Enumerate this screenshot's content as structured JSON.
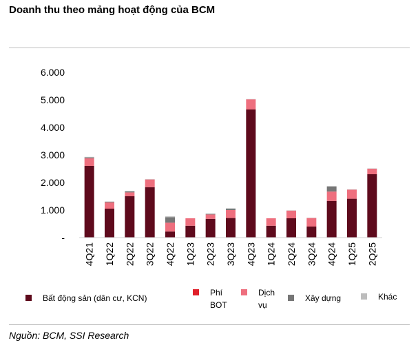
{
  "title": "Doanh thu theo mảng hoạt động của BCM",
  "source": "Nguồn: BCM, SSI Research",
  "chart_data": {
    "type": "bar",
    "stacked": true,
    "categories": [
      "4Q21",
      "1Q22",
      "2Q22",
      "3Q22",
      "4Q22",
      "1Q23",
      "2Q23",
      "3Q23",
      "4Q23",
      "1Q24",
      "2Q24",
      "3Q24",
      "4Q24",
      "1Q25",
      "2Q25"
    ],
    "ylim": [
      0,
      6000
    ],
    "yticks": [
      {
        "value": 0,
        "label": "-"
      },
      {
        "value": 1000,
        "label": "1.000"
      },
      {
        "value": 2000,
        "label": "2.000"
      },
      {
        "value": 3000,
        "label": "3.000"
      },
      {
        "value": 4000,
        "label": "4.000"
      },
      {
        "value": 5000,
        "label": "5.000"
      },
      {
        "value": 6000,
        "label": "6.000"
      }
    ],
    "series": [
      {
        "name": "Bất động sản (dân cư, KCN)",
        "color": "#5e0a1c",
        "values": [
          2600,
          1050,
          1500,
          1830,
          220,
          430,
          680,
          710,
          4650,
          430,
          700,
          400,
          1330,
          1410,
          2300
        ]
      },
      {
        "name": "Phí BOT",
        "color": "#e0202a",
        "values": [
          0,
          0,
          0,
          0,
          0,
          0,
          0,
          0,
          0,
          0,
          0,
          0,
          0,
          0,
          0
        ]
      },
      {
        "name": "Dịch vụ",
        "color": "#ee6f7e",
        "values": [
          280,
          230,
          140,
          280,
          320,
          270,
          160,
          290,
          370,
          270,
          280,
          310,
          340,
          330,
          200
        ]
      },
      {
        "name": "Xây dựng",
        "color": "#767676",
        "values": [
          30,
          20,
          40,
          0,
          200,
          0,
          20,
          50,
          0,
          0,
          0,
          0,
          180,
          0,
          0
        ]
      },
      {
        "name": "Khác",
        "color": "#bdbdbd",
        "values": [
          20,
          10,
          10,
          10,
          30,
          0,
          10,
          10,
          10,
          0,
          10,
          10,
          20,
          10,
          10
        ]
      }
    ]
  },
  "legend": [
    {
      "label": "Bất động sản (dân cư, KCN)",
      "color": "#5e0a1c"
    },
    {
      "label_line1": "Phí",
      "label_line2": "BOT",
      "color": "#e0202a"
    },
    {
      "label_line1": "Dịch",
      "label_line2": "vụ",
      "color": "#ee6f7e"
    },
    {
      "label": "Xây dựng",
      "color": "#767676"
    },
    {
      "label": "Khác",
      "color": "#bdbdbd"
    }
  ]
}
